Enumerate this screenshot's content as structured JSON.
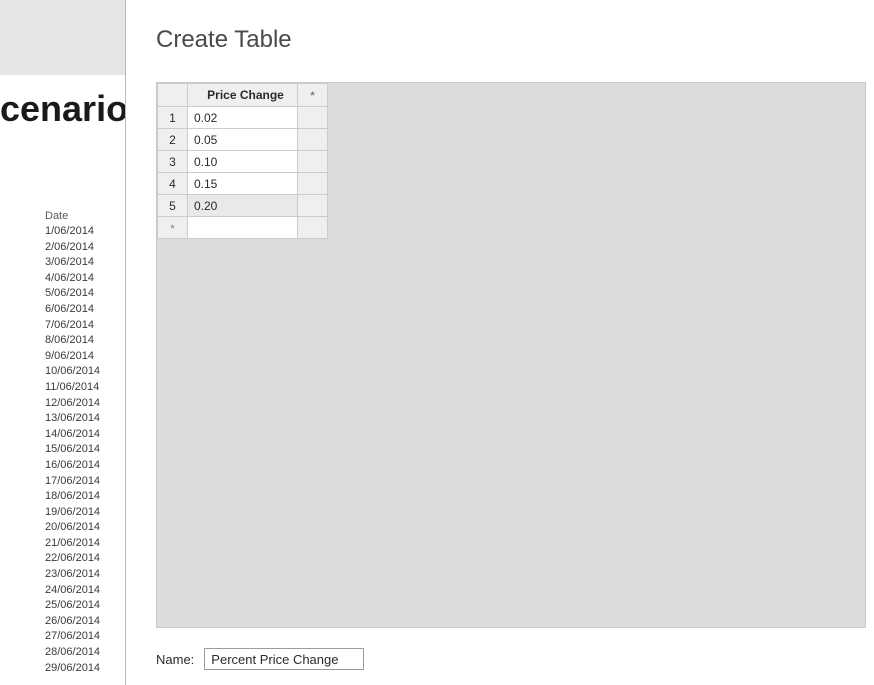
{
  "background": {
    "cutoff_title": "cenario",
    "date_header": "Date",
    "dates": [
      "1/06/2014",
      "2/06/2014",
      "3/06/2014",
      "4/06/2014",
      "5/06/2014",
      "6/06/2014",
      "7/06/2014",
      "8/06/2014",
      "9/06/2014",
      "10/06/2014",
      "11/06/2014",
      "12/06/2014",
      "13/06/2014",
      "14/06/2014",
      "15/06/2014",
      "16/06/2014",
      "17/06/2014",
      "18/06/2014",
      "19/06/2014",
      "20/06/2014",
      "21/06/2014",
      "22/06/2014",
      "23/06/2014",
      "24/06/2014",
      "25/06/2014",
      "26/06/2014",
      "27/06/2014",
      "28/06/2014",
      "29/06/2014"
    ]
  },
  "dialog": {
    "title": "Create Table",
    "column_header": "Price Change",
    "add_col_symbol": "*",
    "new_row_symbol": "*",
    "rows": [
      {
        "n": "1",
        "v": "0.02"
      },
      {
        "n": "2",
        "v": "0.05"
      },
      {
        "n": "3",
        "v": "0.10"
      },
      {
        "n": "4",
        "v": "0.15"
      },
      {
        "n": "5",
        "v": "0.20"
      }
    ],
    "name_label": "Name:",
    "name_value": "Percent Price Change"
  },
  "style": {
    "grid_bg": "#dcdcdc",
    "header_bg": "#efefef",
    "cell_border": "#cccccc",
    "selected_bg": "#e9e9e9"
  }
}
